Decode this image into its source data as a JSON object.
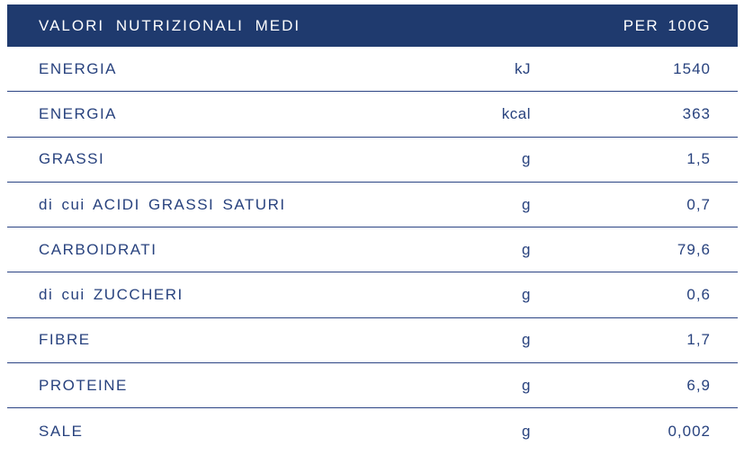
{
  "table": {
    "header": {
      "title": "VALORI NUTRIZIONALI MEDI",
      "column": "PER 100G"
    },
    "rows": [
      {
        "label": "ENERGIA",
        "unit": "kJ",
        "value": "1540"
      },
      {
        "label": "ENERGIA",
        "unit": "kcal",
        "value": "363"
      },
      {
        "label": "GRASSI",
        "unit": "g",
        "value": "1,5"
      },
      {
        "label": "di cui ACIDI GRASSI SATURI",
        "unit": "g",
        "value": "0,7"
      },
      {
        "label": "CARBOIDRATI",
        "unit": "g",
        "value": "79,6"
      },
      {
        "label": "di cui ZUCCHERI",
        "unit": "g",
        "value": "0,6"
      },
      {
        "label": "FIBRE",
        "unit": "g",
        "value": "1,7"
      },
      {
        "label": "PROTEINE",
        "unit": "g",
        "value": "6,9"
      },
      {
        "label": "SALE",
        "unit": "g",
        "value": "0,002"
      }
    ]
  },
  "colors": {
    "header_bg": "#1f3a6e",
    "header_text": "#ffffff",
    "text": "#28427e",
    "divider": "#2b4484",
    "background": "#ffffff"
  }
}
